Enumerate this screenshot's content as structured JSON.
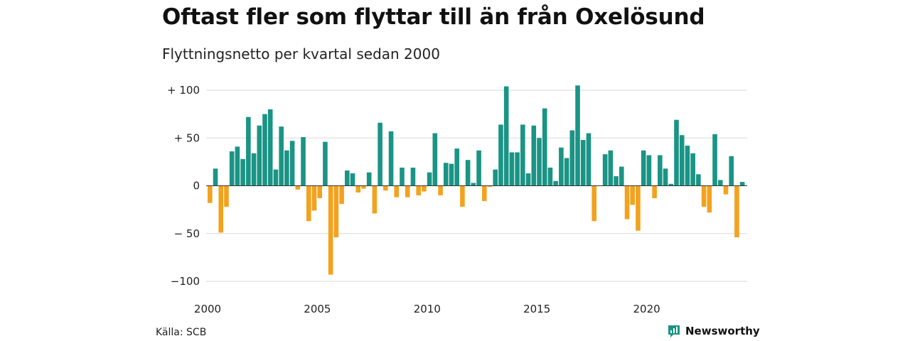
{
  "header": {
    "title": "Oftast fler som flyttar till än från Oxelösund",
    "subtitle": "Flyttningsnetto per kvartal sedan 2000"
  },
  "footer": {
    "source": "Källa: SCB",
    "brand": "Newsworthy"
  },
  "colors": {
    "positive": "#1a9485",
    "negative": "#f3a21e",
    "grid": "#d9d9d9",
    "baseline": "#333333",
    "brand": "#1a9485"
  },
  "icons": {
    "brand_logo": "newsworthy-logo-icon"
  },
  "chart_data": {
    "type": "bar",
    "title": "Oftast fler som flyttar till än från Oxelösund",
    "subtitle": "Flyttningsnetto per kvartal sedan 2000",
    "xlabel": "",
    "ylabel": "",
    "ylim": [
      -100,
      100
    ],
    "yticks": [
      100,
      50,
      0,
      -50,
      -100
    ],
    "ytick_labels": [
      "+ 100",
      "+  50",
      "0",
      "− 50",
      "−100"
    ],
    "xticks": [
      "2000",
      "2005",
      "2010",
      "2015",
      "2020"
    ],
    "grid": true,
    "legend": "none",
    "categories": [
      "2000K1",
      "2000K2",
      "2000K3",
      "2000K4",
      "2001K1",
      "2001K2",
      "2001K3",
      "2001K4",
      "2002K1",
      "2002K2",
      "2002K3",
      "2002K4",
      "2003K1",
      "2003K2",
      "2003K3",
      "2003K4",
      "2004K1",
      "2004K2",
      "2004K3",
      "2004K4",
      "2005K1",
      "2005K2",
      "2005K3",
      "2005K4",
      "2006K1",
      "2006K2",
      "2006K3",
      "2006K4",
      "2007K1",
      "2007K2",
      "2007K3",
      "2007K4",
      "2008K1",
      "2008K2",
      "2008K3",
      "2008K4",
      "2009K1",
      "2009K2",
      "2009K3",
      "2009K4",
      "2010K1",
      "2010K2",
      "2010K3",
      "2010K4",
      "2011K1",
      "2011K2",
      "2011K3",
      "2011K4",
      "2012K1",
      "2012K2",
      "2012K3",
      "2012K4",
      "2013K1",
      "2013K2",
      "2013K3",
      "2013K4",
      "2014K1",
      "2014K2",
      "2014K3",
      "2014K4",
      "2015K1",
      "2015K2",
      "2015K3",
      "2015K4",
      "2016K1",
      "2016K2",
      "2016K3",
      "2016K4",
      "2017K1",
      "2017K2",
      "2017K3",
      "2017K4",
      "2018K1",
      "2018K2",
      "2018K3",
      "2018K4",
      "2019K1",
      "2019K2",
      "2019K3",
      "2019K4",
      "2020K1",
      "2020K2",
      "2020K3",
      "2020K4",
      "2021K1",
      "2021K2",
      "2021K3",
      "2021K4",
      "2022K1",
      "2022K2",
      "2022K3",
      "2022K4",
      "2023K1",
      "2023K2",
      "2023K3",
      "2023K4",
      "2024K1",
      "2024K2"
    ],
    "values": [
      -18,
      18,
      -49,
      -22,
      36,
      41,
      28,
      72,
      34,
      63,
      75,
      80,
      17,
      62,
      37,
      47,
      -4,
      51,
      -37,
      -26,
      -13,
      46,
      -93,
      -54,
      -19,
      16,
      13,
      -7,
      -3,
      14,
      -29,
      66,
      -5,
      57,
      -12,
      19,
      -12,
      19,
      -10,
      -6,
      14,
      55,
      -10,
      24,
      23,
      39,
      -22,
      27,
      3,
      37,
      -16,
      -1,
      17,
      64,
      104,
      35,
      35,
      64,
      13,
      63,
      50,
      81,
      19,
      5,
      40,
      29,
      58,
      105,
      48,
      55,
      -37,
      0,
      33,
      37,
      10,
      20,
      -35,
      -20,
      -47,
      37,
      32,
      -13,
      32,
      18,
      2,
      69,
      53,
      42,
      34,
      12,
      -22,
      -28,
      54,
      6,
      -9,
      31,
      -54,
      4
    ]
  }
}
